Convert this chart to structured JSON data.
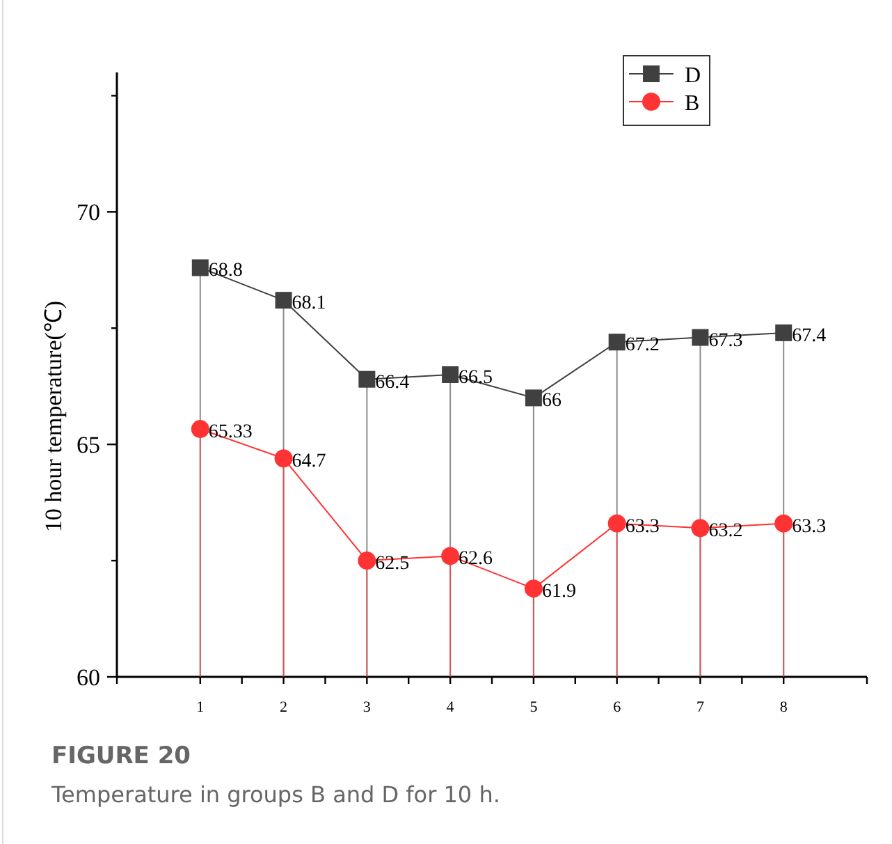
{
  "chart_data": {
    "type": "line",
    "ylabel": "10 hour temperature(℃)",
    "x": [
      1,
      2,
      3,
      4,
      5,
      6,
      7,
      8
    ],
    "xlim": [
      0,
      9
    ],
    "xticks": [
      1,
      2,
      3,
      4,
      5,
      6,
      7,
      8
    ],
    "ylim": [
      60,
      73
    ],
    "yticks": [
      60,
      {
        "value": 62.5,
        "label": null
      },
      65,
      {
        "value": 67.5,
        "label": null
      },
      70,
      {
        "value": 72.5,
        "label": null
      }
    ],
    "series": [
      {
        "name": "D",
        "color": "#404040",
        "marker": "square",
        "values": [
          68.8,
          68.1,
          66.4,
          66.5,
          66,
          67.2,
          67.3,
          67.4
        ]
      },
      {
        "name": "B",
        "color": "#ff3333",
        "marker": "circle",
        "values": [
          65.33,
          64.7,
          62.5,
          62.6,
          61.9,
          63.3,
          63.2,
          63.3
        ]
      }
    ],
    "data_labels": true,
    "legend": "top right",
    "grid": false,
    "annotations": [
      "FIGURE 20",
      "Temperature in groups B and D for 10 h."
    ]
  }
}
